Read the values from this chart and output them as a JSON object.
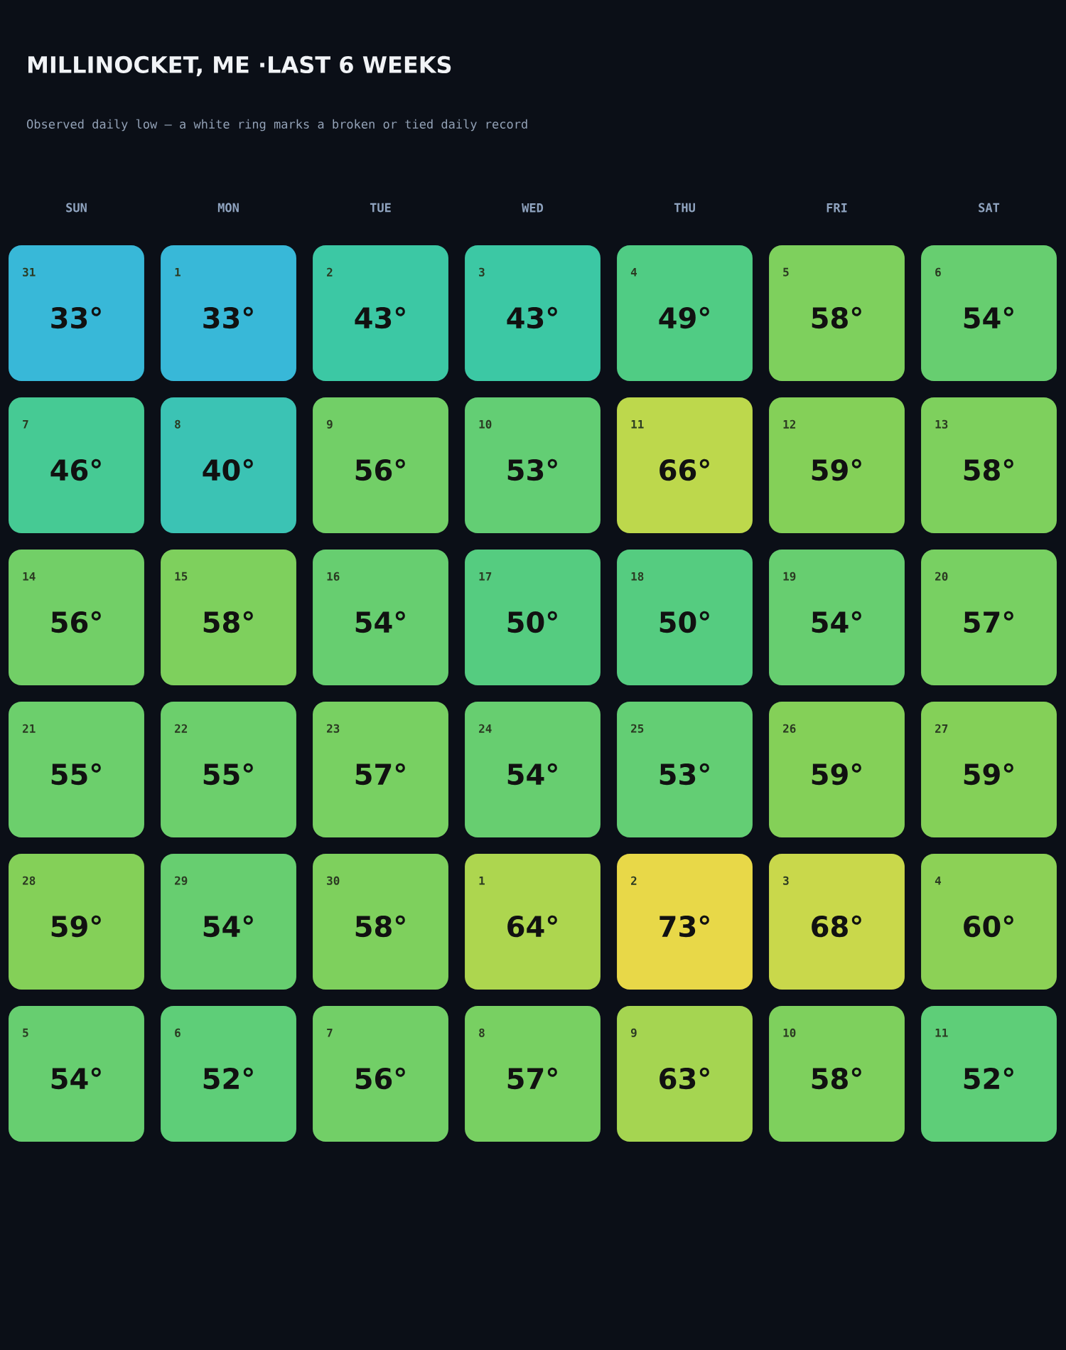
{
  "chart_data": {
    "type": "heatmap",
    "title": "MILLINOCKET, ME ·LAST 6 WEEKS",
    "subtitle": "Observed daily low — a white ring marks a broken or tied daily record",
    "categories": [
      "SUN",
      "MON",
      "TUE",
      "WED",
      "THU",
      "FRI",
      "SAT"
    ],
    "y_categories": [
      null,
      null,
      null,
      null,
      null,
      null
    ],
    "cells": [
      [
        33,
        33,
        43,
        43,
        49,
        58,
        54
      ],
      [
        46,
        40,
        56,
        53,
        66,
        59,
        58
      ],
      [
        56,
        58,
        54,
        50,
        50,
        54,
        57
      ],
      [
        55,
        55,
        57,
        54,
        53,
        59,
        59
      ],
      [
        59,
        54,
        58,
        64,
        73,
        68,
        60
      ],
      [
        54,
        52,
        56,
        57,
        63,
        58,
        52
      ]
    ],
    "cell_labels": [
      [
        "33°",
        "33°",
        "43°",
        "43°",
        "49°",
        "58°",
        "54°"
      ],
      [
        "46°",
        "40°",
        "56°",
        "53°",
        "66°",
        "59°",
        "58°"
      ],
      [
        "56°",
        "58°",
        "54°",
        "50°",
        "50°",
        "54°",
        "57°"
      ],
      [
        "55°",
        "55°",
        "57°",
        "54°",
        "53°",
        "59°",
        "59°"
      ],
      [
        "59°",
        "54°",
        "58°",
        "64°",
        "73°",
        "68°",
        "60°"
      ],
      [
        "54°",
        "52°",
        "56°",
        "57°",
        "63°",
        "58°",
        "52°"
      ]
    ],
    "annotations": [
      "31",
      "1",
      "2",
      "3",
      "4",
      "5",
      "6",
      "7",
      "8",
      "9",
      "10",
      "11",
      "12",
      "13",
      "14",
      "15",
      "16",
      "17",
      "18",
      "19",
      "20",
      "21",
      "22",
      "23",
      "24",
      "25",
      "26",
      "27",
      "28",
      "29",
      "30",
      "1",
      "2",
      "3",
      "4",
      "5",
      "6",
      "7",
      "8",
      "9",
      "10",
      "11"
    ]
  }
}
